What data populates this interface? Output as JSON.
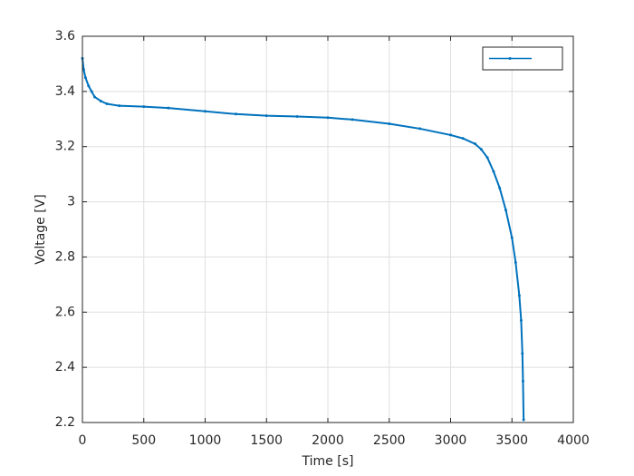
{
  "chart_data": {
    "type": "line",
    "xlabel": "Time [s]",
    "ylabel": "Voltage [V]",
    "x": [
      0,
      10,
      25,
      50,
      75,
      100,
      150,
      200,
      300,
      500,
      700,
      1000,
      1250,
      1500,
      1750,
      2000,
      2200,
      2500,
      2750,
      3000,
      3100,
      3200,
      3250,
      3300,
      3350,
      3400,
      3450,
      3500,
      3530,
      3560,
      3575,
      3585,
      3590,
      3595
    ],
    "series": [
      {
        "color": "#0072bd",
        "values": [
          3.52,
          3.48,
          3.45,
          3.42,
          3.4,
          3.38,
          3.365,
          3.355,
          3.348,
          3.345,
          3.34,
          3.328,
          3.318,
          3.312,
          3.309,
          3.305,
          3.298,
          3.283,
          3.265,
          3.242,
          3.23,
          3.21,
          3.19,
          3.16,
          3.11,
          3.05,
          2.97,
          2.87,
          2.78,
          2.66,
          2.57,
          2.45,
          2.35,
          2.21
        ]
      }
    ],
    "xlim": [
      0,
      4000
    ],
    "xticks": [
      0,
      500,
      1000,
      1500,
      2000,
      2500,
      3000,
      3500,
      4000
    ],
    "ylim": [
      2.2,
      3.6
    ],
    "yticks": [
      2.2,
      2.4,
      2.6,
      2.8,
      3,
      3.2,
      3.4,
      3.6
    ],
    "grid": true,
    "legend": "northeast"
  }
}
